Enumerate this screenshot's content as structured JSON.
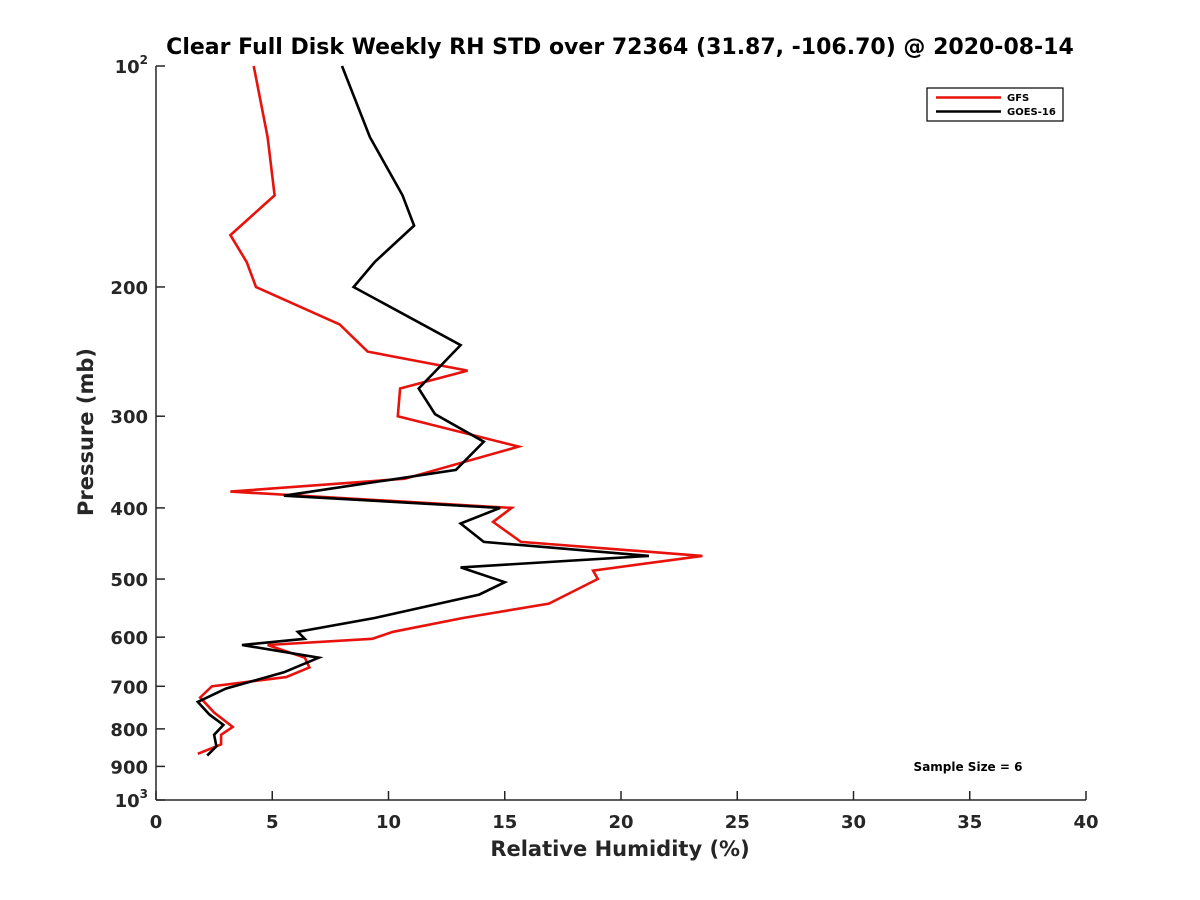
{
  "chart_data": {
    "type": "line",
    "title": "Clear Full Disk Weekly RH STD over 72364 (31.87, -106.70) @ 2020-08-14",
    "xlabel": "Relative Humidity (%)",
    "ylabel": "Pressure (mb)",
    "xlim": [
      0,
      40
    ],
    "ylim": [
      100,
      1000
    ],
    "y_scale": "log",
    "y_reversed": true,
    "x_ticks": [
      "0",
      "5",
      "10",
      "15",
      "20",
      "25",
      "30",
      "35",
      "40"
    ],
    "y_ticks": [
      {
        "value": 100,
        "base": "10",
        "exp": "2"
      },
      {
        "value": 200,
        "label": "200"
      },
      {
        "value": 300,
        "label": "300"
      },
      {
        "value": 400,
        "label": "400"
      },
      {
        "value": 500,
        "label": "500"
      },
      {
        "value": 600,
        "label": "600"
      },
      {
        "value": 700,
        "label": "700"
      },
      {
        "value": 800,
        "label": "800"
      },
      {
        "value": 900,
        "label": "900"
      },
      {
        "value": 1000,
        "base": "10",
        "exp": "3"
      }
    ],
    "grid": false,
    "legend_position": "top-right",
    "annotation": "Sample Size = 6",
    "series": [
      {
        "name": "GFS",
        "color": "#e8120c",
        "points": [
          [
            4.2,
            100
          ],
          [
            4.8,
            125
          ],
          [
            5.1,
            150
          ],
          [
            3.2,
            170
          ],
          [
            3.9,
            185
          ],
          [
            4.3,
            200
          ],
          [
            7.9,
            225
          ],
          [
            9.1,
            245
          ],
          [
            13.4,
            260
          ],
          [
            10.5,
            275
          ],
          [
            10.4,
            300
          ],
          [
            15.6,
            330
          ],
          [
            10.7,
            365
          ],
          [
            3.2,
            380
          ],
          [
            15.3,
            400
          ],
          [
            14.5,
            418
          ],
          [
            15.7,
            445
          ],
          [
            23.5,
            465
          ],
          [
            18.8,
            487
          ],
          [
            19.0,
            500
          ],
          [
            16.9,
            540
          ],
          [
            13.2,
            565
          ],
          [
            10.2,
            590
          ],
          [
            9.3,
            603
          ],
          [
            4.8,
            615
          ],
          [
            6.4,
            640
          ],
          [
            6.6,
            660
          ],
          [
            5.6,
            680
          ],
          [
            2.4,
            700
          ],
          [
            1.9,
            725
          ],
          [
            2.5,
            760
          ],
          [
            3.3,
            795
          ],
          [
            2.8,
            815
          ],
          [
            2.8,
            840
          ],
          [
            1.8,
            865
          ]
        ]
      },
      {
        "name": "GOES-16",
        "color": "#000000",
        "points": [
          [
            8.0,
            100
          ],
          [
            9.2,
            125
          ],
          [
            10.6,
            150
          ],
          [
            11.1,
            165
          ],
          [
            9.4,
            185
          ],
          [
            8.5,
            200
          ],
          [
            13.1,
            240
          ],
          [
            11.3,
            275
          ],
          [
            12.0,
            298
          ],
          [
            14.1,
            325
          ],
          [
            12.9,
            355
          ],
          [
            5.5,
            385
          ],
          [
            14.8,
            400
          ],
          [
            13.1,
            420
          ],
          [
            14.1,
            445
          ],
          [
            21.2,
            465
          ],
          [
            13.1,
            482
          ],
          [
            15.0,
            505
          ],
          [
            13.9,
            525
          ],
          [
            9.4,
            565
          ],
          [
            6.1,
            590
          ],
          [
            6.4,
            603
          ],
          [
            3.7,
            615
          ],
          [
            7.0,
            640
          ],
          [
            5.5,
            670
          ],
          [
            3.0,
            705
          ],
          [
            1.8,
            735
          ],
          [
            2.3,
            765
          ],
          [
            2.9,
            790
          ],
          [
            2.5,
            815
          ],
          [
            2.6,
            845
          ],
          [
            2.2,
            870
          ]
        ]
      }
    ]
  }
}
